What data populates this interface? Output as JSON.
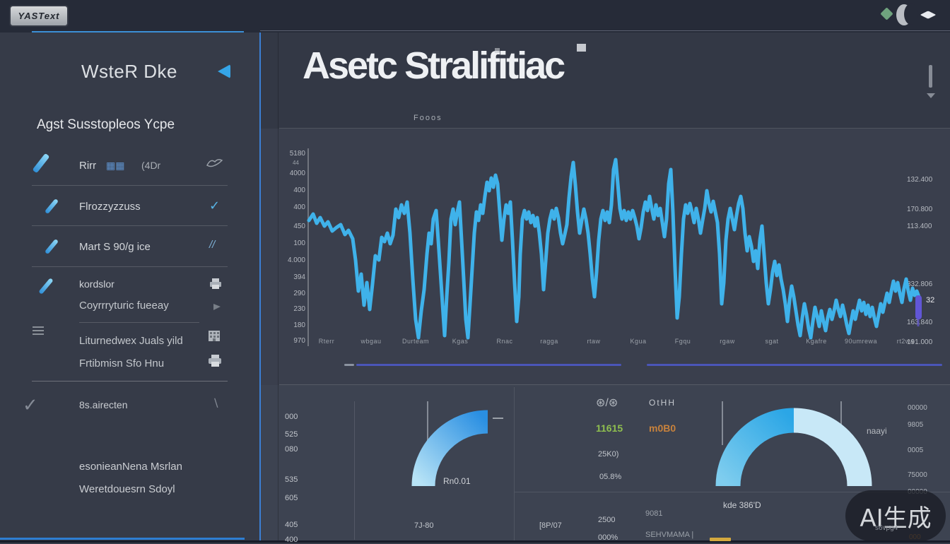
{
  "topbar": {
    "logo_text": "YASText"
  },
  "icons": {
    "check": "✓",
    "double_slash": "//",
    "backslash": "∖",
    "gears": "⊛/⊛",
    "badge_blocks": "▦▦"
  },
  "sidebar": {
    "title": "WsteR Dke",
    "section_title": "Agst Susstopleos Ycpe",
    "item1": {
      "label": "Rirr",
      "badge": "▦▦",
      "extra": "(4Dr"
    },
    "item2": {
      "label": "Flrozzyzzuss"
    },
    "item3": {
      "label": "Mart S 90/g ice"
    },
    "item4": {
      "label": "kordslor",
      "sub": "Coyrrryturic fueeay"
    },
    "item5": {
      "label": "Liturnedwex Juals yild",
      "sub": "Frtibmisn Sfo Hnu"
    },
    "item6": {
      "label": "8s.airecten"
    },
    "footer1": "esonieanNena Msrlan",
    "footer2": "Weretdouesrn Sdoyl"
  },
  "main": {
    "title": "Asetc Stralifitiac",
    "subtitle": "Fooos"
  },
  "chart_data": {
    "main_line": {
      "type": "line",
      "title": "Asetc Stralifitiac price line",
      "line_color": "#3fb2ea",
      "cursor_color": "#6156d6",
      "y_labels": [
        "5180",
        "4000",
        "400",
        "400",
        "450",
        "100",
        "4.000",
        "394",
        "290",
        "230",
        "180",
        "970"
      ],
      "y_sub": "44",
      "x_labels": [
        "Rterr",
        "wbgau",
        "Durteam",
        "Kgas",
        "Rnac",
        "ragga",
        "rtaw",
        "Kgua",
        "Fgqu",
        "rgaw",
        "sgat",
        "Kgafre",
        "90umrewa",
        "rt2wa"
      ],
      "right_labels": [
        "132.400",
        "170.800",
        "113.400",
        "332.806",
        "163.840",
        "191.000"
      ],
      "cursor_label": "32",
      "points": [
        [
          437,
          312
        ],
        [
          443,
          303
        ],
        [
          448,
          316
        ],
        [
          453,
          308
        ],
        [
          459,
          320
        ],
        [
          464,
          314
        ],
        [
          470,
          327
        ],
        [
          476,
          322
        ],
        [
          482,
          318
        ],
        [
          488,
          332
        ],
        [
          493,
          326
        ],
        [
          499,
          338
        ],
        [
          503,
          368
        ],
        [
          507,
          412
        ],
        [
          511,
          388
        ],
        [
          515,
          432
        ],
        [
          519,
          400
        ],
        [
          523,
          438
        ],
        [
          527,
          402
        ],
        [
          531,
          362
        ],
        [
          536,
          368
        ],
        [
          540,
          336
        ],
        [
          544,
          342
        ],
        [
          548,
          330
        ],
        [
          552,
          345
        ],
        [
          556,
          333
        ],
        [
          560,
          296
        ],
        [
          564,
          308
        ],
        [
          568,
          290
        ],
        [
          572,
          302
        ],
        [
          576,
          286
        ],
        [
          580,
          330
        ],
        [
          584,
          395
        ],
        [
          588,
          452
        ],
        [
          592,
          478
        ],
        [
          596,
          440
        ],
        [
          600,
          410
        ],
        [
          604,
          360
        ],
        [
          607,
          330
        ],
        [
          610,
          345
        ],
        [
          613,
          310
        ],
        [
          617,
          298
        ],
        [
          620,
          340
        ],
        [
          623,
          385
        ],
        [
          626,
          430
        ],
        [
          629,
          475
        ],
        [
          632,
          420
        ],
        [
          635,
          372
        ],
        [
          638,
          310
        ],
        [
          641,
          296
        ],
        [
          644,
          318
        ],
        [
          647,
          300
        ],
        [
          650,
          286
        ],
        [
          653,
          340
        ],
        [
          656,
          395
        ],
        [
          659,
          452
        ],
        [
          662,
          478
        ],
        [
          665,
          430
        ],
        [
          668,
          380
        ],
        [
          671,
          330
        ],
        [
          674,
          300
        ],
        [
          677,
          312
        ],
        [
          680,
          290
        ],
        [
          683,
          302
        ],
        [
          686,
          278
        ],
        [
          689,
          258
        ],
        [
          692,
          270
        ],
        [
          695,
          252
        ],
        [
          698,
          265
        ],
        [
          701,
          248
        ],
        [
          704,
          260
        ],
        [
          707,
          300
        ],
        [
          710,
          340
        ],
        [
          713,
          310
        ],
        [
          716,
          290
        ],
        [
          719,
          302
        ],
        [
          722,
          286
        ],
        [
          725,
          340
        ],
        [
          728,
          400
        ],
        [
          731,
          455
        ],
        [
          734,
          420
        ],
        [
          736,
          360
        ],
        [
          739,
          310
        ],
        [
          742,
          298
        ],
        [
          745,
          310
        ],
        [
          748,
          300
        ],
        [
          751,
          315
        ],
        [
          754,
          305
        ],
        [
          757,
          320
        ],
        [
          760,
          308
        ],
        [
          763,
          330
        ],
        [
          766,
          360
        ],
        [
          769,
          410
        ],
        [
          772,
          370
        ],
        [
          775,
          330
        ],
        [
          778,
          310
        ],
        [
          781,
          298
        ],
        [
          784,
          310
        ],
        [
          787,
          295
        ],
        [
          790,
          308
        ],
        [
          793,
          330
        ],
        [
          796,
          345
        ],
        [
          799,
          332
        ],
        [
          802,
          318
        ],
        [
          805,
          280
        ],
        [
          808,
          250
        ],
        [
          811,
          230
        ],
        [
          814,
          262
        ],
        [
          817,
          300
        ],
        [
          820,
          330
        ],
        [
          823,
          312
        ],
        [
          826,
          296
        ],
        [
          829,
          310
        ],
        [
          832,
          330
        ],
        [
          835,
          360
        ],
        [
          838,
          395
        ],
        [
          841,
          420
        ],
        [
          844,
          385
        ],
        [
          847,
          340
        ],
        [
          850,
          310
        ],
        [
          853,
          298
        ],
        [
          856,
          312
        ],
        [
          859,
          300
        ],
        [
          862,
          315
        ],
        [
          865,
          290
        ],
        [
          868,
          240
        ],
        [
          871,
          226
        ],
        [
          874,
          260
        ],
        [
          877,
          295
        ],
        [
          880,
          310
        ],
        [
          883,
          298
        ],
        [
          886,
          312
        ],
        [
          889,
          300
        ],
        [
          892,
          310
        ],
        [
          895,
          298
        ],
        [
          898,
          308
        ],
        [
          901,
          320
        ],
        [
          904,
          338
        ],
        [
          907,
          322
        ],
        [
          910,
          300
        ],
        [
          913,
          286
        ],
        [
          916,
          298
        ],
        [
          919,
          278
        ],
        [
          922,
          295
        ],
        [
          925,
          310
        ],
        [
          928,
          290
        ],
        [
          931,
          305
        ],
        [
          934,
          295
        ],
        [
          937,
          315
        ],
        [
          940,
          335
        ],
        [
          943,
          310
        ],
        [
          946,
          260
        ],
        [
          949,
          240
        ],
        [
          952,
          300
        ],
        [
          955,
          380
        ],
        [
          958,
          450
        ],
        [
          961,
          420
        ],
        [
          964,
          360
        ],
        [
          967,
          310
        ],
        [
          970,
          290
        ],
        [
          973,
          302
        ],
        [
          976,
          288
        ],
        [
          979,
          300
        ],
        [
          982,
          315
        ],
        [
          985,
          295
        ],
        [
          988,
          310
        ],
        [
          991,
          330
        ],
        [
          994,
          312
        ],
        [
          997,
          295
        ],
        [
          1000,
          270
        ],
        [
          1003,
          288
        ],
        [
          1006,
          300
        ],
        [
          1009,
          285
        ],
        [
          1012,
          300
        ],
        [
          1015,
          315
        ],
        [
          1018,
          360
        ],
        [
          1021,
          430
        ],
        [
          1024,
          400
        ],
        [
          1027,
          340
        ],
        [
          1030,
          310
        ],
        [
          1033,
          295
        ],
        [
          1036,
          310
        ],
        [
          1039,
          325
        ],
        [
          1042,
          305
        ],
        [
          1045,
          288
        ],
        [
          1048,
          278
        ],
        [
          1051,
          295
        ],
        [
          1054,
          330
        ],
        [
          1057,
          355
        ],
        [
          1060,
          335
        ],
        [
          1063,
          348
        ],
        [
          1066,
          370
        ],
        [
          1069,
          355
        ],
        [
          1072,
          380
        ],
        [
          1075,
          340
        ],
        [
          1078,
          320
        ],
        [
          1081,
          360
        ],
        [
          1084,
          400
        ],
        [
          1087,
          430
        ],
        [
          1090,
          410
        ],
        [
          1093,
          385
        ],
        [
          1096,
          370
        ],
        [
          1099,
          390
        ],
        [
          1102,
          375
        ],
        [
          1105,
          395
        ],
        [
          1108,
          410
        ],
        [
          1111,
          430
        ],
        [
          1114,
          455
        ],
        [
          1117,
          425
        ],
        [
          1120,
          405
        ],
        [
          1123,
          420
        ],
        [
          1126,
          440
        ],
        [
          1129,
          460
        ],
        [
          1132,
          475
        ],
        [
          1135,
          450
        ],
        [
          1138,
          430
        ],
        [
          1141,
          445
        ],
        [
          1144,
          465
        ],
        [
          1147,
          478
        ],
        [
          1150,
          455
        ],
        [
          1153,
          435
        ],
        [
          1156,
          448
        ],
        [
          1159,
          462
        ],
        [
          1162,
          440
        ],
        [
          1165,
          455
        ],
        [
          1168,
          468
        ],
        [
          1171,
          450
        ],
        [
          1174,
          438
        ],
        [
          1177,
          452
        ],
        [
          1180,
          440
        ],
        [
          1183,
          425
        ],
        [
          1186,
          438
        ],
        [
          1189,
          448
        ],
        [
          1192,
          432
        ],
        [
          1195,
          445
        ],
        [
          1198,
          460
        ],
        [
          1201,
          472
        ],
        [
          1204,
          455
        ],
        [
          1207,
          440
        ],
        [
          1210,
          452
        ],
        [
          1213,
          438
        ],
        [
          1216,
          425
        ],
        [
          1219,
          440
        ],
        [
          1222,
          428
        ],
        [
          1225,
          445
        ],
        [
          1228,
          432
        ],
        [
          1231,
          448
        ],
        [
          1234,
          435
        ],
        [
          1237,
          450
        ],
        [
          1240,
          462
        ],
        [
          1243,
          446
        ],
        [
          1246,
          430
        ],
        [
          1249,
          442
        ],
        [
          1252,
          428
        ],
        [
          1255,
          415
        ],
        [
          1258,
          428
        ],
        [
          1261,
          412
        ],
        [
          1264,
          398
        ],
        [
          1267,
          412
        ],
        [
          1270,
          400
        ],
        [
          1273,
          415
        ],
        [
          1276,
          428
        ],
        [
          1279,
          408
        ],
        [
          1282,
          395
        ],
        [
          1285,
          412
        ],
        [
          1288,
          425
        ],
        [
          1291,
          408
        ],
        [
          1294,
          418
        ],
        [
          1297,
          412
        ],
        [
          1300,
          420
        ]
      ]
    },
    "gauge_left": {
      "type": "gauge",
      "style": "quarter-arc",
      "value_label": "Rn0.01",
      "x_label": "7J-80",
      "colors": [
        "#b7e3f6",
        "#2a8fe2"
      ]
    },
    "gauge_right": {
      "type": "gauge",
      "style": "semicircle",
      "label": "kde 386'D",
      "side_label": "naayi",
      "segments": [
        {
          "color_from": "#7fcdee",
          "color_to": "#2ba6e6",
          "portion": 0.5
        },
        {
          "color": "#c8e8f7",
          "portion": 0.5
        }
      ]
    }
  },
  "bottom": {
    "left_column": [
      "000",
      "525",
      "080",
      "535",
      "605",
      "405",
      "400"
    ],
    "mid": {
      "header": "OtHH",
      "green_value": "11615",
      "orange_value": "m0B0",
      "row3": "25K0)",
      "row4": "05.8%",
      "small1": "9081",
      "small2": "SEHVMAMA |",
      "col2_value": "2500",
      "col2_pct": "000%",
      "tick_label": "[8P/07"
    },
    "right_column": [
      "00000",
      "9805",
      "0005",
      "75000",
      "00000"
    ],
    "orange_small": "000"
  },
  "watermark": {
    "text": "AI生成",
    "sub": "s6vpg4"
  }
}
